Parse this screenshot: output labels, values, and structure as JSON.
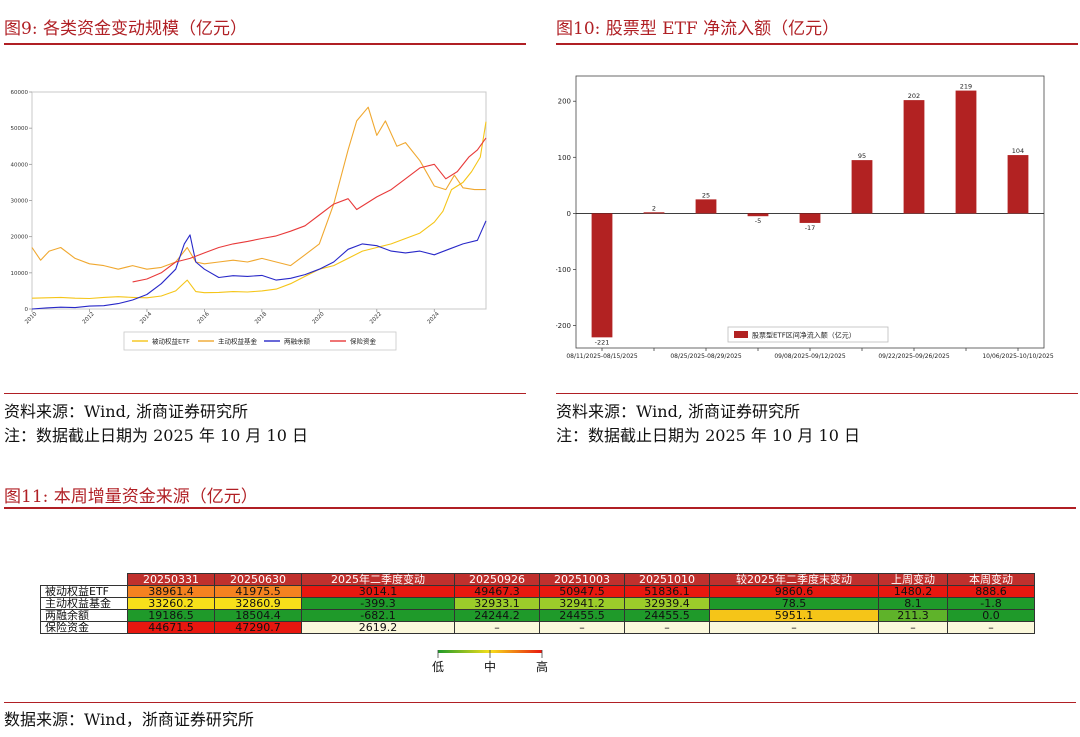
{
  "panels": {
    "fig9": {
      "title": "图9:   各类资金变动规模（亿元）"
    },
    "fig10": {
      "title": "图10:   股票型 ETF 净流入额（亿元）"
    },
    "fig11": {
      "title": "图11:   本周增量资金来源（亿元）"
    }
  },
  "notes": {
    "fig9_source": "资料来源：Wind, 浙商证券研究所",
    "fig9_note": "注：数据截止日期为 2025 年 10 月 10 日",
    "fig10_source": "资料来源：Wind, 浙商证券研究所",
    "fig10_note": "注：数据截止日期为 2025 年 10 月 10 日",
    "fig11_source": "数据来源：Wind，浙商证券研究所"
  },
  "colors": {
    "brand_red": "#b01f24",
    "etf_bar": "#b22222"
  },
  "chart_data": [
    {
      "type": "line",
      "x_ticks": [
        "2010",
        "2012",
        "2014",
        "2016",
        "2018",
        "2020",
        "2022",
        "2024"
      ],
      "y_ticks": [
        "0",
        "10000",
        "20000",
        "30000",
        "40000",
        "50000",
        "60000"
      ],
      "ylim": [
        0,
        60000
      ],
      "xlim": [
        2010,
        2025.8
      ],
      "grid": false,
      "legend_position": "bottom",
      "series": [
        {
          "name": "被动权益ETF",
          "color": "#f5c518",
          "points": [
            [
              2010.0,
              3000
            ],
            [
              2010.5,
              3100
            ],
            [
              2011.0,
              3200
            ],
            [
              2011.5,
              3000
            ],
            [
              2012.0,
              2900
            ],
            [
              2012.5,
              3200
            ],
            [
              2013.0,
              3400
            ],
            [
              2013.5,
              3200
            ],
            [
              2014.0,
              3100
            ],
            [
              2014.5,
              3600
            ],
            [
              2015.0,
              5000
            ],
            [
              2015.4,
              8000
            ],
            [
              2015.7,
              4800
            ],
            [
              2016.0,
              4500
            ],
            [
              2016.5,
              4600
            ],
            [
              2017.0,
              4800
            ],
            [
              2017.5,
              4700
            ],
            [
              2018.0,
              5000
            ],
            [
              2018.5,
              5500
            ],
            [
              2019.0,
              7000
            ],
            [
              2019.5,
              9000
            ],
            [
              2020.0,
              11000
            ],
            [
              2020.5,
              12000
            ],
            [
              2021.0,
              14000
            ],
            [
              2021.5,
              16000
            ],
            [
              2022.0,
              17000
            ],
            [
              2022.5,
              18000
            ],
            [
              2023.0,
              19500
            ],
            [
              2023.5,
              21000
            ],
            [
              2024.0,
              24000
            ],
            [
              2024.3,
              27000
            ],
            [
              2024.6,
              33000
            ],
            [
              2025.0,
              35000
            ],
            [
              2025.3,
              38000
            ],
            [
              2025.6,
              42000
            ],
            [
              2025.8,
              51800
            ]
          ]
        },
        {
          "name": "主动权益基金",
          "color": "#f0a830",
          "points": [
            [
              2010.0,
              17000
            ],
            [
              2010.3,
              13500
            ],
            [
              2010.6,
              16000
            ],
            [
              2011.0,
              17000
            ],
            [
              2011.5,
              14000
            ],
            [
              2012.0,
              12500
            ],
            [
              2012.5,
              12000
            ],
            [
              2013.0,
              11000
            ],
            [
              2013.5,
              12000
            ],
            [
              2014.0,
              11000
            ],
            [
              2014.5,
              11500
            ],
            [
              2015.0,
              13000
            ],
            [
              2015.4,
              17000
            ],
            [
              2015.7,
              13000
            ],
            [
              2016.0,
              12500
            ],
            [
              2016.5,
              13000
            ],
            [
              2017.0,
              13500
            ],
            [
              2017.5,
              13000
            ],
            [
              2018.0,
              14000
            ],
            [
              2018.5,
              13000
            ],
            [
              2019.0,
              12000
            ],
            [
              2019.5,
              15000
            ],
            [
              2020.0,
              18000
            ],
            [
              2020.5,
              29000
            ],
            [
              2021.0,
              44000
            ],
            [
              2021.3,
              52000
            ],
            [
              2021.7,
              55800
            ],
            [
              2022.0,
              48000
            ],
            [
              2022.3,
              52000
            ],
            [
              2022.7,
              45000
            ],
            [
              2023.0,
              46000
            ],
            [
              2023.5,
              41000
            ],
            [
              2024.0,
              34000
            ],
            [
              2024.4,
              33000
            ],
            [
              2024.7,
              37000
            ],
            [
              2025.0,
              33500
            ],
            [
              2025.4,
              33000
            ],
            [
              2025.8,
              33000
            ]
          ]
        },
        {
          "name": "两融余额",
          "color": "#2828c8",
          "points": [
            [
              2010.0,
              0
            ],
            [
              2010.5,
              300
            ],
            [
              2011.0,
              500
            ],
            [
              2011.5,
              400
            ],
            [
              2012.0,
              800
            ],
            [
              2012.5,
              900
            ],
            [
              2013.0,
              1500
            ],
            [
              2013.5,
              2500
            ],
            [
              2014.0,
              4000
            ],
            [
              2014.5,
              7000
            ],
            [
              2015.0,
              11000
            ],
            [
              2015.3,
              18000
            ],
            [
              2015.5,
              20500
            ],
            [
              2015.7,
              13000
            ],
            [
              2016.0,
              11000
            ],
            [
              2016.5,
              8700
            ],
            [
              2017.0,
              9200
            ],
            [
              2017.5,
              9000
            ],
            [
              2018.0,
              9300
            ],
            [
              2018.5,
              8000
            ],
            [
              2019.0,
              8500
            ],
            [
              2019.5,
              9500
            ],
            [
              2020.0,
              11000
            ],
            [
              2020.5,
              13000
            ],
            [
              2021.0,
              16500
            ],
            [
              2021.5,
              18000
            ],
            [
              2022.0,
              17500
            ],
            [
              2022.5,
              16000
            ],
            [
              2023.0,
              15500
            ],
            [
              2023.5,
              16000
            ],
            [
              2024.0,
              15000
            ],
            [
              2024.5,
              16500
            ],
            [
              2025.0,
              18000
            ],
            [
              2025.5,
              19000
            ],
            [
              2025.8,
              24400
            ]
          ]
        },
        {
          "name": "保险资金",
          "color": "#e83a3a",
          "points": [
            [
              2013.5,
              7500
            ],
            [
              2014.0,
              8300
            ],
            [
              2014.5,
              10000
            ],
            [
              2015.0,
              13000
            ],
            [
              2015.5,
              14000
            ],
            [
              2016.0,
              15500
            ],
            [
              2016.5,
              17000
            ],
            [
              2017.0,
              18000
            ],
            [
              2017.5,
              18700
            ],
            [
              2018.0,
              19500
            ],
            [
              2018.5,
              20200
            ],
            [
              2019.0,
              21500
            ],
            [
              2019.5,
              23000
            ],
            [
              2020.0,
              26000
            ],
            [
              2020.5,
              29000
            ],
            [
              2021.0,
              30500
            ],
            [
              2021.3,
              27500
            ],
            [
              2021.6,
              29000
            ],
            [
              2022.0,
              31000
            ],
            [
              2022.5,
              33000
            ],
            [
              2023.0,
              36000
            ],
            [
              2023.5,
              39000
            ],
            [
              2024.0,
              40000
            ],
            [
              2024.4,
              36000
            ],
            [
              2024.8,
              38000
            ],
            [
              2025.2,
              42000
            ],
            [
              2025.5,
              44000
            ],
            [
              2025.8,
              47300
            ]
          ]
        }
      ]
    },
    {
      "type": "bar",
      "categories": [
        "08/11/2025-08/15/2025",
        "08/18/2025-08/22/2025",
        "08/25/2025-08/29/2025",
        "09/01/2025-09/05/2025",
        "09/08/2025-09/12/2025",
        "09/15/2025-09/19/2025",
        "09/22/2025-09/26/2025",
        "09/29/2025-10/03/2025",
        "10/06/2025-10/10/2025"
      ],
      "tick_labels": [
        "08/11/2025-08/15/2025",
        "",
        "08/25/2025-08/29/2025",
        "",
        "09/08/2025-09/12/2025",
        "",
        "09/22/2025-09/26/2025",
        "",
        "10/06/2025-10/10/2025"
      ],
      "values": [
        -221,
        2,
        25,
        -5,
        -17,
        95,
        202,
        219,
        104
      ],
      "value_labels": [
        "-221",
        "2",
        "25",
        "-5",
        "-17",
        "95",
        "202",
        "219",
        "104"
      ],
      "y_ticks": [
        "-200",
        "-100",
        "0",
        "100",
        "200"
      ],
      "ylim": [
        -240,
        245
      ],
      "legend": "股票型ETF区间净流入额（亿元）",
      "legend_position": "bottom-right"
    },
    {
      "type": "table",
      "columns": [
        "20250331",
        "20250630",
        "2025年二季度变动",
        "20250926",
        "20251003",
        "20251010",
        "较2025年二季度末变动",
        "上周变动",
        "本周变动"
      ],
      "rows": [
        {
          "label": "被动权益ETF",
          "cells": [
            {
              "v": "38961.4",
              "c": "#f58220",
              "t": "#111"
            },
            {
              "v": "41975.5",
              "c": "#f58220",
              "t": "#111"
            },
            {
              "v": "3014.1",
              "c": "#e8170f",
              "t": "#111"
            },
            {
              "v": "49467.3",
              "c": "#e8170f",
              "t": "#111"
            },
            {
              "v": "50947.5",
              "c": "#e8170f",
              "t": "#111"
            },
            {
              "v": "51836.1",
              "c": "#e8170f",
              "t": "#111"
            },
            {
              "v": "9860.6",
              "c": "#e8170f",
              "t": "#111"
            },
            {
              "v": "1480.2",
              "c": "#e8170f",
              "t": "#111"
            },
            {
              "v": "888.6",
              "c": "#e8170f",
              "t": "#111"
            }
          ]
        },
        {
          "label": "主动权益基金",
          "cells": [
            {
              "v": "33260.2",
              "c": "#f7e01a",
              "t": "#111"
            },
            {
              "v": "32860.9",
              "c": "#f7e01a",
              "t": "#111"
            },
            {
              "v": "-399.3",
              "c": "#1f9a2a",
              "t": "#111"
            },
            {
              "v": "32933.1",
              "c": "#9ccc2a",
              "t": "#111"
            },
            {
              "v": "32941.2",
              "c": "#9ccc2a",
              "t": "#111"
            },
            {
              "v": "32939.4",
              "c": "#9ccc2a",
              "t": "#111"
            },
            {
              "v": "78.5",
              "c": "#1f9a2a",
              "t": "#111"
            },
            {
              "v": "8.1",
              "c": "#1f9a2a",
              "t": "#111"
            },
            {
              "v": "-1.8",
              "c": "#1f9a2a",
              "t": "#111"
            }
          ]
        },
        {
          "label": "两融余额",
          "cells": [
            {
              "v": "19186.5",
              "c": "#1f9a2a",
              "t": "#111"
            },
            {
              "v": "18504.4",
              "c": "#1f9a2a",
              "t": "#111"
            },
            {
              "v": "-682.1",
              "c": "#1f9a2a",
              "t": "#111"
            },
            {
              "v": "24244.2",
              "c": "#1f9a2a",
              "t": "#111"
            },
            {
              "v": "24455.5",
              "c": "#1f9a2a",
              "t": "#111"
            },
            {
              "v": "24455.5",
              "c": "#1f9a2a",
              "t": "#111"
            },
            {
              "v": "5951.1",
              "c": "#f5c518",
              "t": "#111"
            },
            {
              "v": "211.3",
              "c": "#5fb32a",
              "t": "#111"
            },
            {
              "v": "0.0",
              "c": "#1f9a2a",
              "t": "#111"
            }
          ]
        },
        {
          "label": "保险资金",
          "cells": [
            {
              "v": "44671.5",
              "c": "#e8170f",
              "t": "#111"
            },
            {
              "v": "47290.7",
              "c": "#e8170f",
              "t": "#111"
            },
            {
              "v": "2619.2",
              "c": "#fbf8dc",
              "t": "#111"
            },
            {
              "v": "–",
              "c": "#fbf8dc",
              "t": "#111"
            },
            {
              "v": "–",
              "c": "#fbf8dc",
              "t": "#111"
            },
            {
              "v": "–",
              "c": "#fbf8dc",
              "t": "#111"
            },
            {
              "v": "–",
              "c": "#fbf8dc",
              "t": "#111"
            },
            {
              "v": "–",
              "c": "#fbf8dc",
              "t": "#111"
            },
            {
              "v": "–",
              "c": "#fbf8dc",
              "t": "#111"
            }
          ]
        }
      ],
      "scale": {
        "low": "低",
        "mid": "中",
        "high": "高"
      }
    }
  ]
}
